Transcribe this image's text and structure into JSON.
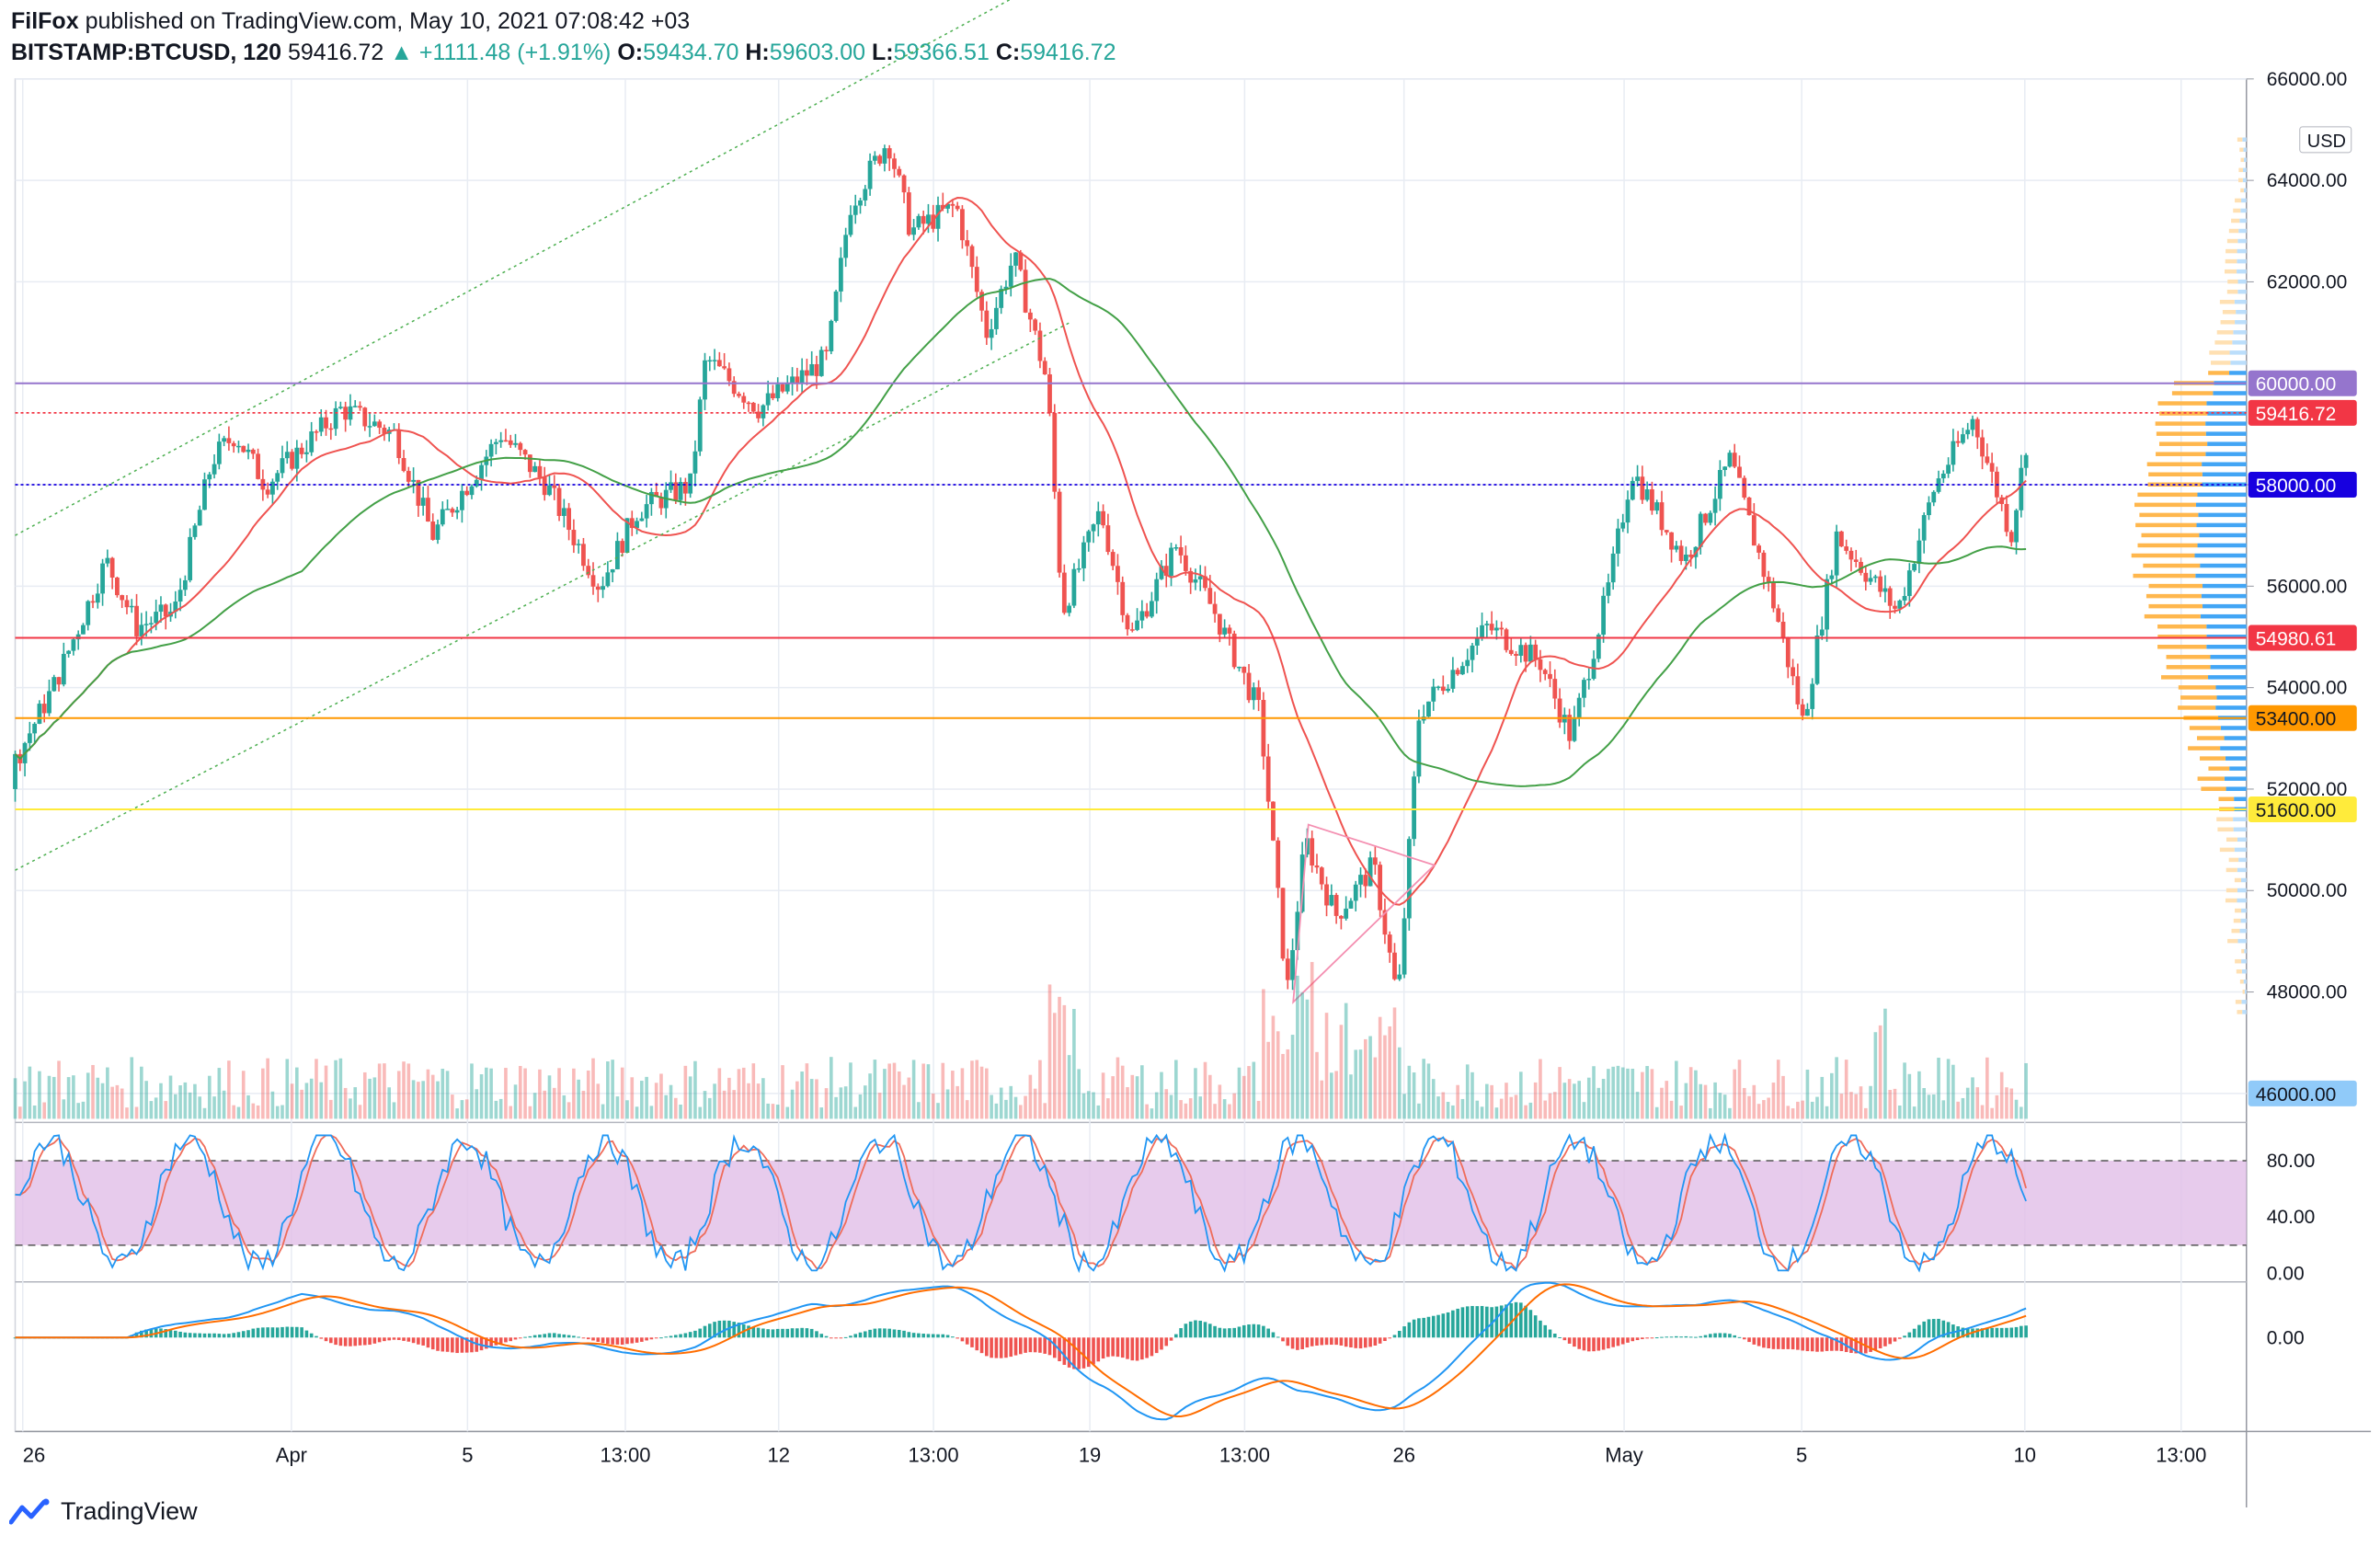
{
  "header": {
    "author": "FilFox",
    "published": "published on TradingView.com, May 10, 2021 07:08:42 +03",
    "symbol": "BITSTAMP:BTCUSD, 120",
    "last": "59416.72",
    "change": "▲ +1111.48 (+1.91%)",
    "o_label": "O:",
    "o_value": "59434.70",
    "h_label": "H:",
    "h_value": "59603.00",
    "l_label": "L:",
    "l_value": "59366.51",
    "c_label": "C:",
    "c_value": "59416.72"
  },
  "footer": {
    "brand": "TradingView"
  },
  "colors": {
    "up": "#26a69a",
    "down": "#ef5350",
    "grid": "#e8ecf3",
    "purple_level": "#9575cd",
    "red_level": "#f23645",
    "blue_level": "#1700e0",
    "orange_level": "#ff9800",
    "yellow_level": "#ffeb3b",
    "sma_short": "#ef5350",
    "sma_long": "#43a047",
    "stoch_k": "#2196f3",
    "stoch_d": "#ef6c5a",
    "stoch_band": "#e1bee7",
    "macd": "#2196f3",
    "signal": "#ff6d00"
  },
  "chart_data": {
    "type": "candlestick",
    "symbol": "BITSTAMP:BTCUSD",
    "timeframe": "120",
    "currency": "USD",
    "ylim": [
      45500,
      66000
    ],
    "yticks": [
      48000,
      50000,
      52000,
      54000,
      56000,
      58000,
      62000,
      64000,
      66000
    ],
    "xticks": [
      "26",
      "Apr",
      "5",
      "13:00",
      "12",
      "13:00",
      "19",
      "13:00",
      "26",
      "May",
      "5",
      "10",
      "13:00"
    ],
    "price_path_keypoints": [
      {
        "x": 0,
        "y": 52000
      },
      {
        "x": 35,
        "y": 54000
      },
      {
        "x": 70,
        "y": 56500
      },
      {
        "x": 90,
        "y": 55200
      },
      {
        "x": 115,
        "y": 55500
      },
      {
        "x": 140,
        "y": 58500
      },
      {
        "x": 155,
        "y": 59000
      },
      {
        "x": 175,
        "y": 58000
      },
      {
        "x": 225,
        "y": 59500
      },
      {
        "x": 260,
        "y": 59000
      },
      {
        "x": 285,
        "y": 57000
      },
      {
        "x": 330,
        "y": 59000
      },
      {
        "x": 360,
        "y": 58000
      },
      {
        "x": 395,
        "y": 56000
      },
      {
        "x": 420,
        "y": 57500
      },
      {
        "x": 455,
        "y": 58000
      },
      {
        "x": 465,
        "y": 60500
      },
      {
        "x": 500,
        "y": 59500
      },
      {
        "x": 545,
        "y": 60500
      },
      {
        "x": 560,
        "y": 63500
      },
      {
        "x": 585,
        "y": 64800
      },
      {
        "x": 600,
        "y": 63000
      },
      {
        "x": 630,
        "y": 63500
      },
      {
        "x": 650,
        "y": 61000
      },
      {
        "x": 668,
        "y": 62500
      },
      {
        "x": 690,
        "y": 60000
      },
      {
        "x": 700,
        "y": 55500
      },
      {
        "x": 725,
        "y": 57500
      },
      {
        "x": 745,
        "y": 55000
      },
      {
        "x": 775,
        "y": 56800
      },
      {
        "x": 800,
        "y": 55500
      },
      {
        "x": 830,
        "y": 53500
      },
      {
        "x": 848,
        "y": 48000
      },
      {
        "x": 860,
        "y": 51000
      },
      {
        "x": 880,
        "y": 49500
      },
      {
        "x": 905,
        "y": 50500
      },
      {
        "x": 921,
        "y": 47800
      },
      {
        "x": 935,
        "y": 53500
      },
      {
        "x": 980,
        "y": 55200
      },
      {
        "x": 1015,
        "y": 54500
      },
      {
        "x": 1035,
        "y": 53000
      },
      {
        "x": 1060,
        "y": 56000
      },
      {
        "x": 1075,
        "y": 58300
      },
      {
        "x": 1110,
        "y": 56500
      },
      {
        "x": 1140,
        "y": 58500
      },
      {
        "x": 1170,
        "y": 55500
      },
      {
        "x": 1188,
        "y": 53300
      },
      {
        "x": 1210,
        "y": 57000
      },
      {
        "x": 1250,
        "y": 55500
      },
      {
        "x": 1275,
        "y": 58000
      },
      {
        "x": 1300,
        "y": 59300
      },
      {
        "x": 1325,
        "y": 57000
      },
      {
        "x": 1338,
        "y": 59416.72
      }
    ],
    "horizontal_levels": [
      {
        "price": 60000.0,
        "label": "60000.00",
        "color": "#9575cd",
        "style": "solid"
      },
      {
        "price": 59416.72,
        "label": "59416.72",
        "color": "#f23645",
        "style": "dotted"
      },
      {
        "price": 58000.0,
        "label": "58000.00",
        "color": "#1700e0",
        "style": "dotted"
      },
      {
        "price": 54980.61,
        "label": "54980.61",
        "color": "#f23645",
        "style": "solid"
      },
      {
        "price": 53400.0,
        "label": "53400.00",
        "color": "#ff9800",
        "style": "solid"
      },
      {
        "price": 51600.0,
        "label": "51600.00",
        "color": "#ffeb3b",
        "style": "solid"
      },
      {
        "price": 46000.0,
        "label": "46000.00",
        "color": "#90caf9",
        "style": "none"
      }
    ],
    "trend_channel": {
      "upper": [
        [
          10,
          57000
        ],
        [
          680,
          67800
        ]
      ],
      "lower": [
        [
          10,
          50400
        ],
        [
          705,
          61200
        ]
      ]
    },
    "triangle": [
      [
        862,
        51300
      ],
      [
        945,
        50500
      ],
      [
        852,
        47800
      ]
    ],
    "stochastic": {
      "ylim": [
        0,
        100
      ],
      "yticks": [
        "80.00",
        "40.00",
        "0.00"
      ],
      "band": [
        20,
        80
      ]
    },
    "macd": {
      "ytick": "0.00"
    }
  }
}
